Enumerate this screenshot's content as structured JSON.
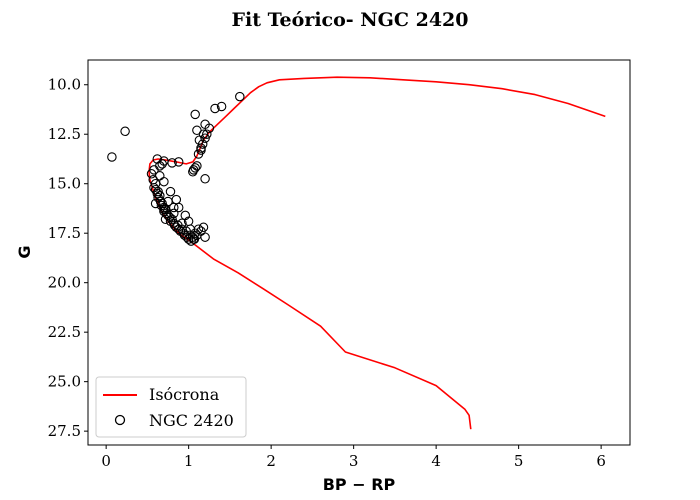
{
  "chart_data": {
    "type": "line+scatter",
    "title": "Fit Teórico- NGC 2420",
    "xlabel": "BP − RP",
    "ylabel": "G",
    "xlim": [
      -0.22,
      6.35
    ],
    "ylim": [
      28.2,
      8.75
    ],
    "y_inverted": true,
    "xticks": [
      0,
      1,
      2,
      3,
      4,
      5,
      6
    ],
    "yticks": [
      10.0,
      12.5,
      15.0,
      17.5,
      20.0,
      22.5,
      25.0,
      27.5
    ],
    "xtick_labels": [
      "0",
      "1",
      "2",
      "3",
      "4",
      "5",
      "6"
    ],
    "ytick_labels": [
      "10.0",
      "12.5",
      "15.0",
      "17.5",
      "20.0",
      "22.5",
      "25.0",
      "27.5"
    ],
    "grid": false,
    "legend_position": "lower-left",
    "series": [
      {
        "name": "Isócrona",
        "kind": "line",
        "color": "#ff0000",
        "x": [
          4.42,
          4.4,
          4.35,
          4.0,
          3.5,
          2.9,
          2.6,
          2.2,
          1.9,
          1.6,
          1.3,
          1.05,
          0.88,
          0.75,
          0.66,
          0.6,
          0.56,
          0.53,
          0.52,
          0.53,
          0.57,
          0.63,
          0.72,
          0.85,
          0.97,
          1.05,
          1.1,
          1.14,
          1.18,
          1.25,
          1.35,
          1.45,
          1.55,
          1.65,
          1.75,
          1.85,
          1.95,
          2.1,
          2.4,
          2.8,
          3.2,
          3.6,
          4.0,
          4.4,
          4.8,
          5.2,
          5.6,
          6.05
        ],
        "y": [
          27.4,
          26.7,
          26.4,
          25.2,
          24.3,
          23.5,
          22.2,
          21.1,
          20.3,
          19.5,
          18.8,
          18.0,
          17.5,
          16.9,
          16.3,
          15.7,
          15.2,
          14.8,
          14.4,
          14.0,
          13.8,
          13.75,
          13.8,
          13.9,
          14.0,
          13.9,
          13.6,
          13.2,
          12.8,
          12.4,
          12.0,
          11.6,
          11.2,
          10.8,
          10.4,
          10.1,
          9.9,
          9.75,
          9.68,
          9.62,
          9.65,
          9.75,
          9.85,
          10.0,
          10.2,
          10.5,
          10.95,
          11.6
        ]
      },
      {
        "name": "NGC 2420",
        "kind": "scatter",
        "color": "#000000",
        "x": [
          0.07,
          0.23,
          0.55,
          0.57,
          0.58,
          0.6,
          0.6,
          0.62,
          0.63,
          0.65,
          0.66,
          0.68,
          0.7,
          0.7,
          0.72,
          0.73,
          0.75,
          0.77,
          0.78,
          0.8,
          0.82,
          0.83,
          0.85,
          0.87,
          0.88,
          0.9,
          0.92,
          0.94,
          0.95,
          0.97,
          0.98,
          1.0,
          1.02,
          1.03,
          1.05,
          1.07,
          1.08,
          1.1,
          1.12,
          1.15,
          1.18,
          1.2,
          0.58,
          0.65,
          0.7,
          0.78,
          0.85,
          0.65,
          0.7,
          0.62,
          0.68,
          0.8,
          0.88,
          0.96,
          1.0,
          0.75,
          0.82,
          0.72,
          0.67,
          0.63,
          1.05,
          1.08,
          1.1,
          1.12,
          1.15,
          1.17,
          1.2,
          1.22,
          1.25,
          1.1,
          1.13,
          1.18,
          1.08,
          1.2,
          1.15,
          1.32,
          1.4,
          1.62,
          1.2,
          1.06,
          0.6,
          0.7,
          0.82,
          0.88,
          0.92,
          1.02,
          1.06
        ],
        "y": [
          13.65,
          12.35,
          14.5,
          14.8,
          15.2,
          15.0,
          15.3,
          15.5,
          15.7,
          15.6,
          15.9,
          16.0,
          16.2,
          16.4,
          16.3,
          16.5,
          16.6,
          16.7,
          16.9,
          16.8,
          17.0,
          17.1,
          17.2,
          17.1,
          17.3,
          17.4,
          17.3,
          17.5,
          17.6,
          17.4,
          17.7,
          17.8,
          17.6,
          17.9,
          17.7,
          17.8,
          17.5,
          17.6,
          17.3,
          17.4,
          17.2,
          17.7,
          14.3,
          14.6,
          14.9,
          15.4,
          15.8,
          14.1,
          13.85,
          13.75,
          14.0,
          13.95,
          13.9,
          16.6,
          16.9,
          15.9,
          16.2,
          16.8,
          16.1,
          15.4,
          14.4,
          14.2,
          14.1,
          13.5,
          13.2,
          13.0,
          12.7,
          12.5,
          12.2,
          12.3,
          12.8,
          12.5,
          11.5,
          12.0,
          13.3,
          11.2,
          11.1,
          10.6,
          14.75,
          14.3,
          16.0,
          16.3,
          16.5,
          16.2,
          17.0,
          17.3,
          17.8
        ]
      }
    ]
  }
}
